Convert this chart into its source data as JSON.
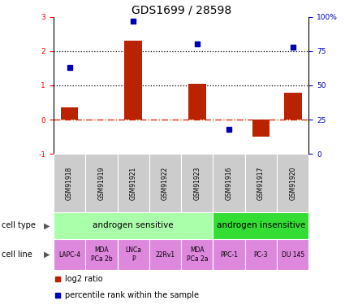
{
  "title": "GDS1699 / 28598",
  "samples": [
    "GSM91918",
    "GSM91919",
    "GSM91921",
    "GSM91922",
    "GSM91923",
    "GSM91916",
    "GSM91917",
    "GSM91920"
  ],
  "log2_ratio": [
    0.35,
    0.0,
    2.3,
    0.0,
    1.05,
    0.0,
    -0.5,
    0.78
  ],
  "percentile_rank": [
    63,
    0,
    97,
    0,
    80,
    18,
    0,
    78
  ],
  "ylim_left": [
    -1,
    3
  ],
  "ylim_right": [
    0,
    100
  ],
  "cell_type_groups": [
    {
      "label": "androgen sensitive",
      "start": 0,
      "end": 5,
      "color": "#aaffaa"
    },
    {
      "label": "androgen insensitive",
      "start": 5,
      "end": 8,
      "color": "#33dd33"
    }
  ],
  "cell_lines": [
    "LAPC-4",
    "MDA\nPCa 2b",
    "LNCa\nP",
    "22Rv1",
    "MDA\nPCa 2a",
    "PPC-1",
    "PC-3",
    "DU 145"
  ],
  "cell_line_color": "#dd88dd",
  "gsm_bg_color": "#cccccc",
  "bar_color": "#bb2200",
  "dot_color": "#0000bb",
  "zero_line_color": "#cc2200",
  "dotted_line_color": "#000000",
  "legend_bar_label": "log2 ratio",
  "legend_dot_label": "percentile rank within the sample",
  "cell_type_label": "cell type",
  "cell_line_label": "cell line",
  "title_fontsize": 10,
  "tick_fontsize": 6.5,
  "label_fontsize": 7,
  "gsm_fontsize": 5.5,
  "cell_line_fontsize": 5.5,
  "cell_type_fontsize": 7.5
}
